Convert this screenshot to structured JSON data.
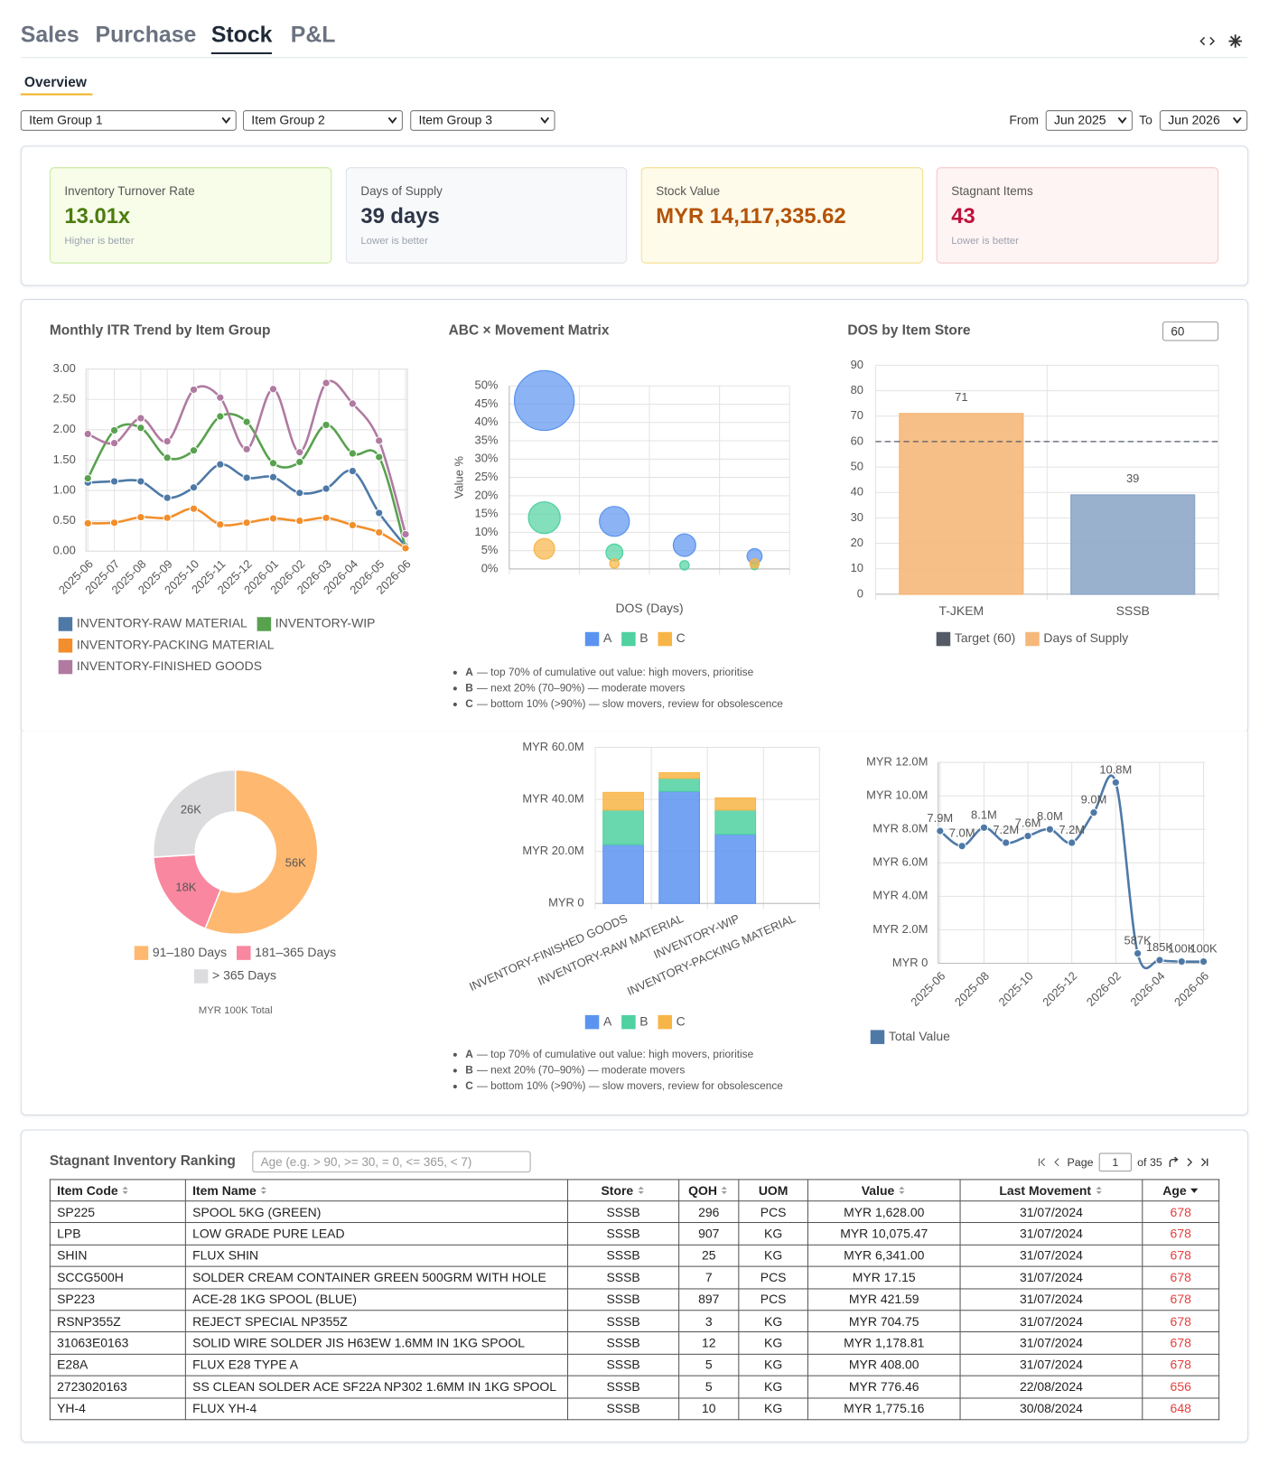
{
  "tabs": [
    "Sales",
    "Purchase",
    "Stock",
    "P&L"
  ],
  "subtab": "Overview",
  "filters": {
    "groups": [
      "Item Group 1",
      "Item Group 2",
      "Item Group 3"
    ],
    "from_label": "From",
    "from": "Jun 2025",
    "to_label": "To",
    "to": "Jun 2026"
  },
  "kpis": [
    {
      "label": "Inventory Turnover Rate",
      "value": "13.01x",
      "note": "Higher is better"
    },
    {
      "label": "Days of Supply",
      "value": "39 days",
      "note": "Lower is better"
    },
    {
      "label": "Stock Value",
      "value": "MYR 14,117,335.62",
      "note": ""
    },
    {
      "label": "Stagnant Items",
      "value": "43",
      "note": "Lower is better"
    }
  ],
  "chart_data": [
    {
      "type": "line",
      "title": "Monthly ITR Trend by Item Group",
      "categories": [
        "2025-06",
        "2025-07",
        "2025-08",
        "2025-09",
        "2025-10",
        "2025-11",
        "2025-12",
        "2026-01",
        "2026-02",
        "2026-03",
        "2026-04",
        "2026-05",
        "2026-06"
      ],
      "ylim": [
        0,
        3
      ],
      "yticks": [
        {
          "value": 0,
          "label": "0.00"
        },
        {
          "value": 0.5,
          "label": "0.50"
        },
        {
          "value": 1,
          "label": "1.00"
        },
        {
          "value": 1.5,
          "label": "1.50"
        },
        {
          "value": 2,
          "label": "2.00"
        },
        {
          "value": 2.5,
          "label": "2.50"
        },
        {
          "value": 3,
          "label": "3.00"
        }
      ],
      "grid": true,
      "series": [
        {
          "name": "INVENTORY-RAW MATERIAL",
          "color": "#4e79a7",
          "values": [
            1.13,
            1.15,
            1.15,
            0.88,
            1.05,
            1.43,
            1.21,
            1.22,
            0.96,
            1.03,
            1.32,
            0.63,
            0.08
          ]
        },
        {
          "name": "INVENTORY-WIP",
          "color": "#59a14f",
          "values": [
            1.2,
            1.99,
            2.03,
            1.54,
            1.66,
            2.22,
            2.13,
            1.45,
            1.47,
            2.08,
            1.61,
            1.55,
            0.05
          ]
        },
        {
          "name": "INVENTORY-PACKING MATERIAL",
          "color": "#f28e2b",
          "values": [
            0.46,
            0.47,
            0.56,
            0.55,
            0.7,
            0.44,
            0.47,
            0.54,
            0.5,
            0.55,
            0.43,
            0.31,
            0.05
          ]
        },
        {
          "name": "INVENTORY-FINISHED GOODS",
          "color": "#b07aa1",
          "values": [
            1.93,
            1.78,
            2.19,
            1.81,
            2.66,
            2.53,
            1.68,
            2.67,
            1.63,
            2.77,
            2.43,
            1.82,
            0.28
          ]
        }
      ]
    },
    {
      "type": "bubble",
      "title": "ABC × Movement Matrix",
      "x_label": "DOS (Days)",
      "y_label": "Value %",
      "categories": [
        null,
        null,
        null,
        null
      ],
      "ylim": [
        0,
        50
      ],
      "yticks": [
        {
          "value": 0,
          "label": "0%"
        },
        {
          "value": 5,
          "label": "5%"
        },
        {
          "value": 10,
          "label": "10%"
        },
        {
          "value": 15,
          "label": "15%"
        },
        {
          "value": 20,
          "label": "20%"
        },
        {
          "value": 25,
          "label": "25%"
        },
        {
          "value": 30,
          "label": "30%"
        },
        {
          "value": 35,
          "label": "35%"
        },
        {
          "value": 40,
          "label": "40%"
        },
        {
          "value": 45,
          "label": "45%"
        },
        {
          "value": 50,
          "label": "50%"
        }
      ],
      "grid": true,
      "series": [
        {
          "name": "A",
          "color": "#5b93f0",
          "values": [
            46,
            13,
            6.5,
            3.5
          ],
          "sizes": [
            32,
            16,
            12,
            8
          ]
        },
        {
          "name": "B",
          "color": "#4fd1a0",
          "values": [
            14,
            4.5,
            1,
            0.8
          ],
          "sizes": [
            17,
            9,
            5,
            4
          ]
        },
        {
          "name": "C",
          "color": "#f8b547",
          "values": [
            5.5,
            1.5,
            null,
            1.5
          ],
          "sizes": [
            11,
            5,
            null,
            5
          ]
        }
      ],
      "notes": [
        {
          "key": "A",
          "text": "— top 70% of cumulative out value: high movers, prioritise"
        },
        {
          "key": "B",
          "text": "— next 20% (70–90%) — moderate movers"
        },
        {
          "key": "C",
          "text": "— bottom 10% (>90%) — slow movers, review for obsolescence"
        }
      ]
    },
    {
      "type": "bar",
      "title": "DOS by Item Store",
      "categories": [
        "T-JKEM",
        "SSSB"
      ],
      "series": [
        {
          "name": "Days of Supply",
          "color": "#f5b87a",
          "bar_colors": [
            "#f5b87a",
            "#8fa8c8"
          ],
          "values": [
            71,
            39
          ]
        }
      ],
      "target": 60,
      "target_name": "Target (60)",
      "target_color": "#555b66",
      "ylim": [
        0,
        90
      ],
      "yticks": [
        0,
        10,
        20,
        30,
        40,
        50,
        60,
        70,
        80,
        90
      ],
      "grid": true
    },
    {
      "type": "donut",
      "categories": [
        "91–180 Days",
        "181–365 Days",
        "> 365 Days"
      ],
      "values": [
        56000,
        18000,
        26000
      ],
      "value_labels": [
        "56K",
        "18K",
        "26K"
      ],
      "colors": [
        "#ffb870",
        "#f8879f",
        "#dcdcdf"
      ],
      "total_label": "MYR 100K Total"
    },
    {
      "type": "stacked_bar",
      "categories": [
        "INVENTORY-FINISHED GOODS",
        "INVENTORY-RAW MATERIAL",
        "INVENTORY-WIP",
        "INVENTORY-PACKING MATERIAL"
      ],
      "ylim": [
        0,
        60000000
      ],
      "yticks": [
        {
          "value": 0,
          "label": "MYR 0"
        },
        {
          "value": 20000000,
          "label": "MYR 20.0M"
        },
        {
          "value": 40000000,
          "label": "MYR 40.0M"
        },
        {
          "value": 60000000,
          "label": "MYR 60.0M"
        }
      ],
      "grid": true,
      "series": [
        {
          "name": "A",
          "color": "#5b93f0",
          "values": [
            22600000,
            43100000,
            26600000,
            0
          ]
        },
        {
          "name": "B",
          "color": "#4fd1a0",
          "values": [
            13300000,
            5000000,
            9300000,
            0
          ]
        },
        {
          "name": "C",
          "color": "#f8b547",
          "values": [
            6800000,
            2200000,
            4700000,
            0
          ]
        }
      ],
      "notes": [
        {
          "key": "A",
          "text": "— top 70% of cumulative out value: high movers, prioritise"
        },
        {
          "key": "B",
          "text": "— next 20% (70–90%) — moderate movers"
        },
        {
          "key": "C",
          "text": "— bottom 10% (>90%) — slow movers, review for obsolescence"
        }
      ]
    },
    {
      "type": "line",
      "categories": [
        "2025-06",
        null,
        "2025-08",
        null,
        "2025-10",
        null,
        "2025-12",
        null,
        "2026-02",
        null,
        "2026-04",
        null,
        "2026-06"
      ],
      "ylim": [
        0,
        12000000
      ],
      "yticks": [
        {
          "value": 0,
          "label": "MYR 0"
        },
        {
          "value": 2000000,
          "label": "MYR 2.0M"
        },
        {
          "value": 4000000,
          "label": "MYR 4.0M"
        },
        {
          "value": 6000000,
          "label": "MYR 6.0M"
        },
        {
          "value": 8000000,
          "label": "MYR 8.0M"
        },
        {
          "value": 10000000,
          "label": "MYR 10.0M"
        },
        {
          "value": 12000000,
          "label": "MYR 12.0M"
        }
      ],
      "grid": true,
      "series": [
        {
          "name": "Total Value",
          "color": "#4e79a7",
          "values": [
            7900000,
            7000000,
            8100000,
            7200000,
            7600000,
            8000000,
            7200000,
            9000000,
            10800000,
            587000,
            185000,
            100000,
            100000
          ],
          "value_labels": [
            "7.9M",
            "7.0M",
            "8.1M",
            "7.2M",
            "7.6M",
            "8.0M",
            "7.2M",
            "9.0M",
            "10.8M",
            "587K",
            "185K",
            "100K",
            "100K"
          ]
        }
      ]
    }
  ],
  "table": {
    "title": "Stagnant Inventory Ranking",
    "filter_placeholder": "Age (e.g. > 90, >= 30, = 0, <= 365, < 7)",
    "page_label": "Page",
    "page": "1",
    "page_total": "of 35",
    "columns": [
      "Item Code",
      "Item Name",
      "Store",
      "QOH",
      "UOM",
      "Value",
      "Last Movement",
      "Age"
    ],
    "rows": [
      [
        "SP225",
        "SPOOL 5KG (GREEN)",
        "SSSB",
        "296",
        "PCS",
        "MYR 1,628.00",
        "31/07/2024",
        "678"
      ],
      [
        "LPB",
        "LOW GRADE PURE LEAD",
        "SSSB",
        "907",
        "KG",
        "MYR 10,075.47",
        "31/07/2024",
        "678"
      ],
      [
        "SHIN",
        "FLUX SHIN",
        "SSSB",
        "25",
        "KG",
        "MYR 6,341.00",
        "31/07/2024",
        "678"
      ],
      [
        "SCCG500H",
        "SOLDER CREAM CONTAINER GREEN 500GRM WITH HOLE",
        "SSSB",
        "7",
        "PCS",
        "MYR 17.15",
        "31/07/2024",
        "678"
      ],
      [
        "SP223",
        "ACE-28 1KG SPOOL (BLUE)",
        "SSSB",
        "897",
        "PCS",
        "MYR 421.59",
        "31/07/2024",
        "678"
      ],
      [
        "RSNP355Z",
        "REJECT SPECIAL NP355Z",
        "SSSB",
        "3",
        "KG",
        "MYR 704.75",
        "31/07/2024",
        "678"
      ],
      [
        "31063E0163",
        "SOLID WIRE SOLDER JIS H63EW 1.6MM IN 1KG SPOOL",
        "SSSB",
        "12",
        "KG",
        "MYR 1,178.81",
        "31/07/2024",
        "678"
      ],
      [
        "E28A",
        "FLUX E28 TYPE A",
        "SSSB",
        "5",
        "KG",
        "MYR 408.00",
        "31/07/2024",
        "678"
      ],
      [
        "2723020163",
        "SS CLEAN SOLDER ACE SF22A NP302 1.6MM IN 1KG SPOOL",
        "SSSB",
        "5",
        "KG",
        "MYR 776.46",
        "22/08/2024",
        "656"
      ],
      [
        "YH-4",
        "FLUX YH-4",
        "SSSB",
        "10",
        "KG",
        "MYR 1,775.16",
        "30/08/2024",
        "648"
      ]
    ]
  }
}
